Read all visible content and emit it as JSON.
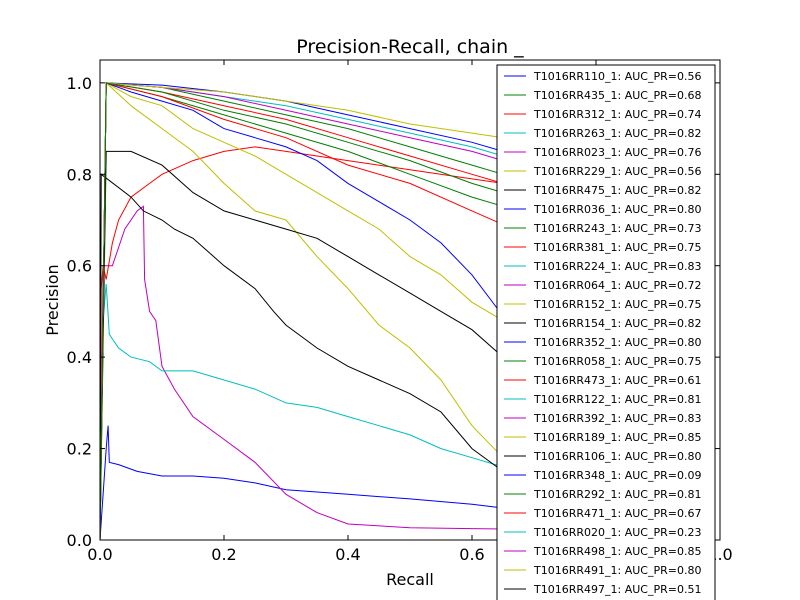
{
  "chart_data": {
    "type": "line",
    "title": "Precision-Recall, chain _",
    "xlabel": "Recall",
    "ylabel": "Precision",
    "xlim": [
      0.0,
      1.0
    ],
    "ylim": [
      0.0,
      1.05
    ],
    "xticks": [
      "0.0",
      "0.2",
      "0.4",
      "0.6",
      "0.8",
      "1.0"
    ],
    "yticks": [
      "0.0",
      "0.2",
      "0.4",
      "0.6",
      "0.8",
      "1.0"
    ],
    "grid": false,
    "legend_position": "top-right",
    "series": [
      {
        "name": "T1016RR110_1: AUC_PR=0.56",
        "color": "#0000ff",
        "auc": 0.56
      },
      {
        "name": "T1016RR435_1: AUC_PR=0.68",
        "color": "#008000",
        "auc": 0.68
      },
      {
        "name": "T1016RR312_1: AUC_PR=0.74",
        "color": "#ff0000",
        "auc": 0.74
      },
      {
        "name": "T1016RR263_1: AUC_PR=0.82",
        "color": "#00bfbf",
        "auc": 0.82
      },
      {
        "name": "T1016RR023_1: AUC_PR=0.76",
        "color": "#bf00bf",
        "auc": 0.76
      },
      {
        "name": "T1016RR229_1: AUC_PR=0.56",
        "color": "#bfbf00",
        "auc": 0.56
      },
      {
        "name": "T1016RR475_1: AUC_PR=0.82",
        "color": "#000000",
        "auc": 0.82
      },
      {
        "name": "T1016RR036_1: AUC_PR=0.80",
        "color": "#0000ff",
        "auc": 0.8
      },
      {
        "name": "T1016RR243_1: AUC_PR=0.73",
        "color": "#008000",
        "auc": 0.73
      },
      {
        "name": "T1016RR381_1: AUC_PR=0.75",
        "color": "#ff0000",
        "auc": 0.75
      },
      {
        "name": "T1016RR224_1: AUC_PR=0.83",
        "color": "#00bfbf",
        "auc": 0.83
      },
      {
        "name": "T1016RR064_1: AUC_PR=0.72",
        "color": "#bf00bf",
        "auc": 0.72
      },
      {
        "name": "T1016RR152_1: AUC_PR=0.75",
        "color": "#bfbf00",
        "auc": 0.75
      },
      {
        "name": "T1016RR154_1: AUC_PR=0.82",
        "color": "#000000",
        "auc": 0.82
      },
      {
        "name": "T1016RR352_1: AUC_PR=0.80",
        "color": "#0000ff",
        "auc": 0.8
      },
      {
        "name": "T1016RR058_1: AUC_PR=0.75",
        "color": "#008000",
        "auc": 0.75
      },
      {
        "name": "T1016RR473_1: AUC_PR=0.61",
        "color": "#ff0000",
        "auc": 0.61
      },
      {
        "name": "T1016RR122_1: AUC_PR=0.81",
        "color": "#00bfbf",
        "auc": 0.81
      },
      {
        "name": "T1016RR392_1: AUC_PR=0.83",
        "color": "#bf00bf",
        "auc": 0.83
      },
      {
        "name": "T1016RR189_1: AUC_PR=0.85",
        "color": "#bfbf00",
        "auc": 0.85
      },
      {
        "name": "T1016RR106_1: AUC_PR=0.80",
        "color": "#000000",
        "auc": 0.8
      },
      {
        "name": "T1016RR348_1: AUC_PR=0.09",
        "color": "#0000ff",
        "auc": 0.09
      },
      {
        "name": "T1016RR292_1: AUC_PR=0.81",
        "color": "#008000",
        "auc": 0.81
      },
      {
        "name": "T1016RR471_1: AUC_PR=0.67",
        "color": "#ff0000",
        "auc": 0.67
      },
      {
        "name": "T1016RR020_1: AUC_PR=0.23",
        "color": "#00bfbf",
        "auc": 0.23
      },
      {
        "name": "T1016RR498_1: AUC_PR=0.85",
        "color": "#bf00bf",
        "auc": 0.85
      },
      {
        "name": "T1016RR491_1: AUC_PR=0.80",
        "color": "#bfbf00",
        "auc": 0.8
      },
      {
        "name": "T1016RR497_1: AUC_PR=0.51",
        "color": "#000000",
        "auc": 0.51
      }
    ],
    "curves": [
      {
        "color": "#0000ff",
        "points": [
          [
            0.0,
            0.0
          ],
          [
            0.005,
            0.1
          ],
          [
            0.01,
            0.2
          ],
          [
            0.013,
            0.25
          ],
          [
            0.015,
            0.17
          ],
          [
            0.03,
            0.165
          ],
          [
            0.06,
            0.15
          ],
          [
            0.1,
            0.14
          ],
          [
            0.15,
            0.14
          ],
          [
            0.2,
            0.135
          ],
          [
            0.25,
            0.125
          ],
          [
            0.3,
            0.11
          ],
          [
            0.4,
            0.1
          ],
          [
            0.5,
            0.09
          ],
          [
            0.6,
            0.078
          ],
          [
            0.65,
            0.07
          ]
        ]
      },
      {
        "color": "#bf00bf",
        "points": [
          [
            0.0,
            0.0
          ],
          [
            0.005,
            0.6
          ],
          [
            0.02,
            0.6
          ],
          [
            0.04,
            0.68
          ],
          [
            0.06,
            0.72
          ],
          [
            0.07,
            0.73
          ],
          [
            0.072,
            0.57
          ],
          [
            0.08,
            0.5
          ],
          [
            0.09,
            0.48
          ],
          [
            0.1,
            0.38
          ],
          [
            0.12,
            0.33
          ],
          [
            0.15,
            0.27
          ],
          [
            0.2,
            0.22
          ],
          [
            0.25,
            0.17
          ],
          [
            0.3,
            0.1
          ],
          [
            0.35,
            0.06
          ],
          [
            0.4,
            0.035
          ],
          [
            0.5,
            0.027
          ],
          [
            0.6,
            0.025
          ],
          [
            0.65,
            0.024
          ]
        ]
      },
      {
        "color": "#00bfbf",
        "points": [
          [
            0.0,
            0.0
          ],
          [
            0.005,
            0.48
          ],
          [
            0.01,
            0.56
          ],
          [
            0.015,
            0.45
          ],
          [
            0.03,
            0.42
          ],
          [
            0.05,
            0.4
          ],
          [
            0.08,
            0.39
          ],
          [
            0.1,
            0.37
          ],
          [
            0.15,
            0.37
          ],
          [
            0.2,
            0.35
          ],
          [
            0.25,
            0.33
          ],
          [
            0.3,
            0.3
          ],
          [
            0.35,
            0.29
          ],
          [
            0.4,
            0.27
          ],
          [
            0.45,
            0.25
          ],
          [
            0.5,
            0.23
          ],
          [
            0.55,
            0.2
          ],
          [
            0.6,
            0.18
          ],
          [
            0.65,
            0.16
          ]
        ]
      },
      {
        "color": "#ff0000",
        "points": [
          [
            0.0,
            0.0
          ],
          [
            0.002,
            0.55
          ],
          [
            0.005,
            0.6
          ],
          [
            0.01,
            0.57
          ],
          [
            0.02,
            0.65
          ],
          [
            0.03,
            0.7
          ],
          [
            0.05,
            0.75
          ],
          [
            0.08,
            0.78
          ],
          [
            0.1,
            0.8
          ],
          [
            0.15,
            0.83
          ],
          [
            0.2,
            0.85
          ],
          [
            0.25,
            0.86
          ],
          [
            0.3,
            0.85
          ],
          [
            0.4,
            0.83
          ],
          [
            0.5,
            0.81
          ],
          [
            0.6,
            0.79
          ],
          [
            0.65,
            0.78
          ]
        ]
      },
      {
        "color": "#000000",
        "points": [
          [
            0.0,
            0.0
          ],
          [
            0.002,
            0.8
          ],
          [
            0.05,
            0.75
          ],
          [
            0.07,
            0.72
          ],
          [
            0.1,
            0.7
          ],
          [
            0.12,
            0.68
          ],
          [
            0.15,
            0.66
          ],
          [
            0.2,
            0.6
          ],
          [
            0.25,
            0.55
          ],
          [
            0.28,
            0.5
          ],
          [
            0.3,
            0.47
          ],
          [
            0.35,
            0.42
          ],
          [
            0.4,
            0.38
          ],
          [
            0.45,
            0.35
          ],
          [
            0.5,
            0.32
          ],
          [
            0.55,
            0.28
          ],
          [
            0.6,
            0.2
          ],
          [
            0.65,
            0.15
          ]
        ]
      },
      {
        "color": "#bfbf00",
        "points": [
          [
            0.0,
            0.0
          ],
          [
            0.01,
            1.0
          ],
          [
            0.05,
            0.95
          ],
          [
            0.1,
            0.9
          ],
          [
            0.15,
            0.85
          ],
          [
            0.2,
            0.78
          ],
          [
            0.25,
            0.72
          ],
          [
            0.3,
            0.7
          ],
          [
            0.35,
            0.62
          ],
          [
            0.4,
            0.55
          ],
          [
            0.45,
            0.47
          ],
          [
            0.5,
            0.42
          ],
          [
            0.55,
            0.35
          ],
          [
            0.6,
            0.25
          ],
          [
            0.65,
            0.18
          ]
        ]
      },
      {
        "color": "#000000",
        "points": [
          [
            0.0,
            0.0
          ],
          [
            0.01,
            0.85
          ],
          [
            0.05,
            0.85
          ],
          [
            0.1,
            0.82
          ],
          [
            0.15,
            0.76
          ],
          [
            0.2,
            0.72
          ],
          [
            0.25,
            0.7
          ],
          [
            0.3,
            0.68
          ],
          [
            0.35,
            0.66
          ],
          [
            0.4,
            0.62
          ],
          [
            0.45,
            0.58
          ],
          [
            0.5,
            0.54
          ],
          [
            0.55,
            0.5
          ],
          [
            0.6,
            0.46
          ],
          [
            0.65,
            0.4
          ]
        ]
      },
      {
        "color": "#bfbf00",
        "points": [
          [
            0.0,
            0.0
          ],
          [
            0.01,
            1.0
          ],
          [
            0.05,
            0.97
          ],
          [
            0.1,
            0.95
          ],
          [
            0.15,
            0.9
          ],
          [
            0.2,
            0.87
          ],
          [
            0.25,
            0.84
          ],
          [
            0.3,
            0.8
          ],
          [
            0.35,
            0.76
          ],
          [
            0.4,
            0.72
          ],
          [
            0.45,
            0.68
          ],
          [
            0.5,
            0.62
          ],
          [
            0.55,
            0.58
          ],
          [
            0.6,
            0.52
          ],
          [
            0.65,
            0.48
          ]
        ]
      },
      {
        "color": "#0000ff",
        "points": [
          [
            0.0,
            0.0
          ],
          [
            0.01,
            1.0
          ],
          [
            0.05,
            0.98
          ],
          [
            0.1,
            0.96
          ],
          [
            0.15,
            0.94
          ],
          [
            0.2,
            0.9
          ],
          [
            0.25,
            0.88
          ],
          [
            0.3,
            0.86
          ],
          [
            0.35,
            0.83
          ],
          [
            0.4,
            0.78
          ],
          [
            0.45,
            0.74
          ],
          [
            0.5,
            0.7
          ],
          [
            0.55,
            0.65
          ],
          [
            0.6,
            0.58
          ],
          [
            0.65,
            0.49
          ]
        ]
      },
      {
        "color": "#008000",
        "points": [
          [
            0.0,
            0.0
          ],
          [
            0.01,
            1.0
          ],
          [
            0.1,
            0.99
          ],
          [
            0.2,
            0.96
          ],
          [
            0.3,
            0.93
          ],
          [
            0.4,
            0.9
          ],
          [
            0.5,
            0.86
          ],
          [
            0.6,
            0.82
          ],
          [
            0.65,
            0.8
          ]
        ]
      },
      {
        "color": "#ff0000",
        "points": [
          [
            0.0,
            0.0
          ],
          [
            0.01,
            1.0
          ],
          [
            0.1,
            0.98
          ],
          [
            0.2,
            0.95
          ],
          [
            0.3,
            0.92
          ],
          [
            0.4,
            0.88
          ],
          [
            0.5,
            0.84
          ],
          [
            0.6,
            0.8
          ],
          [
            0.65,
            0.78
          ]
        ]
      },
      {
        "color": "#00bfbf",
        "points": [
          [
            0.0,
            0.0
          ],
          [
            0.01,
            1.0
          ],
          [
            0.1,
            0.99
          ],
          [
            0.2,
            0.97
          ],
          [
            0.3,
            0.95
          ],
          [
            0.4,
            0.92
          ],
          [
            0.5,
            0.89
          ],
          [
            0.6,
            0.86
          ],
          [
            0.65,
            0.84
          ]
        ]
      },
      {
        "color": "#bf00bf",
        "points": [
          [
            0.0,
            0.0
          ],
          [
            0.01,
            1.0
          ],
          [
            0.1,
            0.99
          ],
          [
            0.2,
            0.97
          ],
          [
            0.3,
            0.94
          ],
          [
            0.4,
            0.91
          ],
          [
            0.5,
            0.88
          ],
          [
            0.6,
            0.85
          ],
          [
            0.65,
            0.83
          ]
        ]
      },
      {
        "color": "#0000ff",
        "points": [
          [
            0.0,
            0.0
          ],
          [
            0.01,
            1.0
          ],
          [
            0.1,
            0.995
          ],
          [
            0.2,
            0.98
          ],
          [
            0.3,
            0.96
          ],
          [
            0.4,
            0.93
          ],
          [
            0.5,
            0.9
          ],
          [
            0.6,
            0.87
          ],
          [
            0.65,
            0.85
          ]
        ]
      },
      {
        "color": "#008000",
        "points": [
          [
            0.0,
            0.0
          ],
          [
            0.01,
            1.0
          ],
          [
            0.1,
            0.97
          ],
          [
            0.2,
            0.93
          ],
          [
            0.3,
            0.89
          ],
          [
            0.4,
            0.85
          ],
          [
            0.5,
            0.8
          ],
          [
            0.6,
            0.75
          ],
          [
            0.65,
            0.73
          ]
        ]
      },
      {
        "color": "#bfbf00",
        "points": [
          [
            0.0,
            0.0
          ],
          [
            0.01,
            1.0
          ],
          [
            0.1,
            0.99
          ],
          [
            0.2,
            0.98
          ],
          [
            0.3,
            0.96
          ],
          [
            0.4,
            0.94
          ],
          [
            0.5,
            0.91
          ],
          [
            0.6,
            0.89
          ],
          [
            0.65,
            0.88
          ]
        ]
      },
      {
        "color": "#ff0000",
        "points": [
          [
            0.0,
            0.0
          ],
          [
            0.01,
            1.0
          ],
          [
            0.1,
            0.97
          ],
          [
            0.2,
            0.92
          ],
          [
            0.3,
            0.88
          ],
          [
            0.4,
            0.82
          ],
          [
            0.5,
            0.78
          ],
          [
            0.6,
            0.72
          ],
          [
            0.65,
            0.69
          ]
        ]
      },
      {
        "color": "#008000",
        "points": [
          [
            0.0,
            0.0
          ],
          [
            0.01,
            1.0
          ],
          [
            0.1,
            0.98
          ],
          [
            0.2,
            0.94
          ],
          [
            0.3,
            0.91
          ],
          [
            0.4,
            0.87
          ],
          [
            0.5,
            0.83
          ],
          [
            0.6,
            0.78
          ],
          [
            0.65,
            0.76
          ]
        ]
      }
    ]
  }
}
